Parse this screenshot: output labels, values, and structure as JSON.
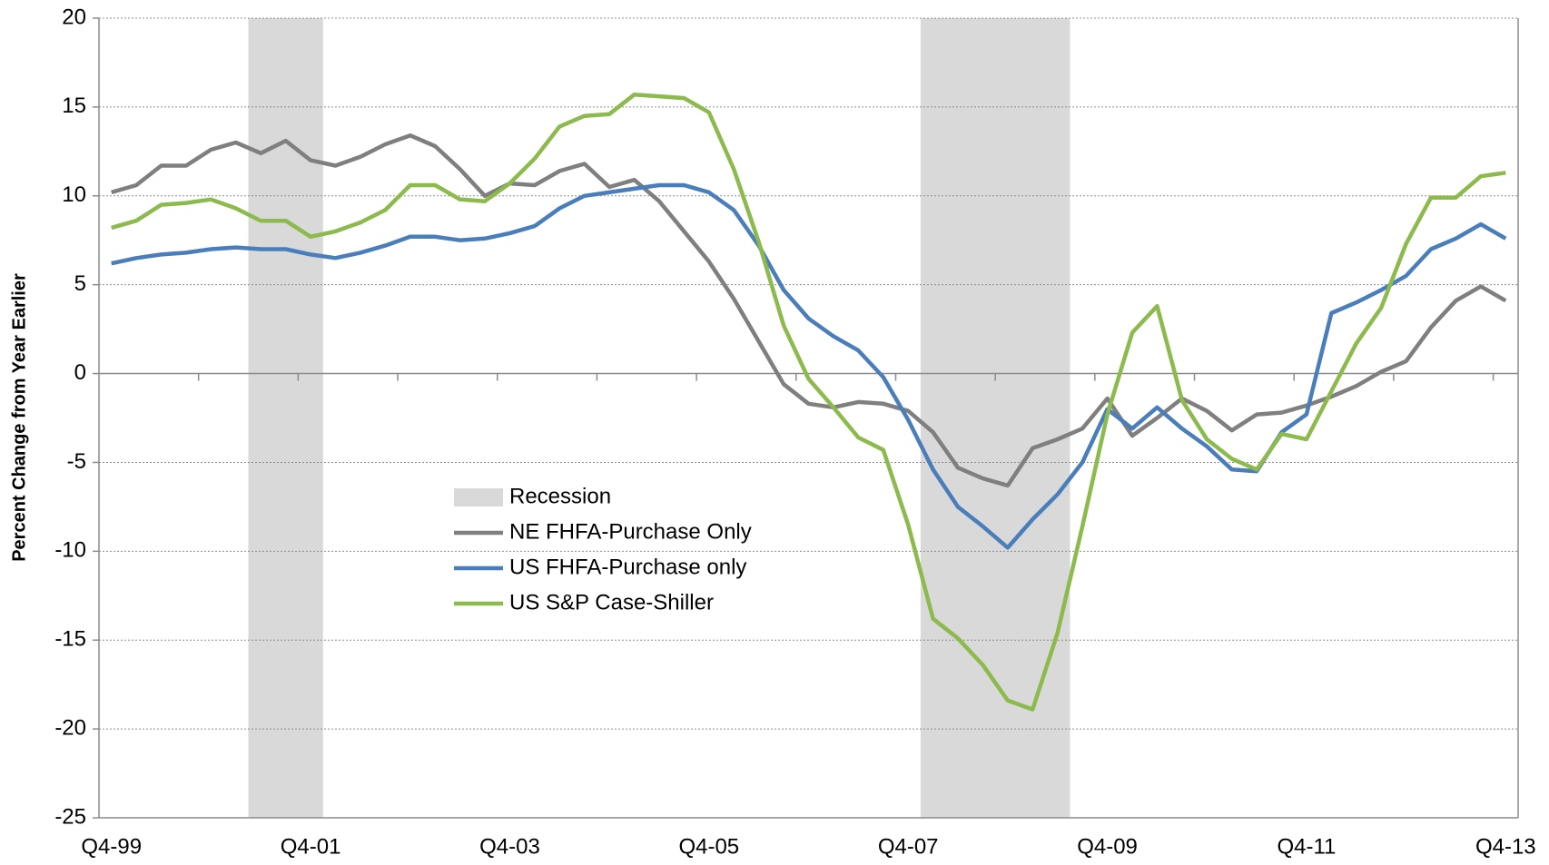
{
  "chart_data": {
    "type": "line",
    "y_label": "Percent Change from Year Earlier",
    "categories": [
      "Q4-99",
      null,
      null,
      null,
      null,
      null,
      null,
      null,
      "Q4-01",
      null,
      null,
      null,
      null,
      null,
      null,
      null,
      "Q4-03",
      null,
      null,
      null,
      null,
      null,
      null,
      null,
      "Q4-05",
      null,
      null,
      null,
      null,
      null,
      null,
      null,
      "Q4-07",
      null,
      null,
      null,
      null,
      null,
      null,
      null,
      "Q4-09",
      null,
      null,
      null,
      null,
      null,
      null,
      null,
      "Q4-11",
      null,
      null,
      null,
      null,
      null,
      null,
      null,
      "Q4-13"
    ],
    "recession": {
      "name": "Recession",
      "color": "#d9d9d9",
      "spans": [
        {
          "start": 6,
          "end": 8
        },
        {
          "start": 33,
          "end": 38
        }
      ]
    },
    "series": [
      {
        "name": "NE FHFA-Purchase Only",
        "color": "#7f7f7f",
        "values": [
          10.2,
          10.6,
          11.7,
          11.7,
          12.6,
          13.0,
          12.4,
          13.1,
          12.0,
          11.7,
          12.2,
          12.9,
          13.4,
          12.8,
          11.5,
          10.0,
          10.7,
          10.6,
          11.4,
          11.8,
          10.5,
          10.9,
          9.7,
          8.0,
          6.3,
          4.2,
          1.8,
          -0.6,
          -1.7,
          -1.9,
          -1.6,
          -1.7,
          -2.1,
          -3.3,
          -5.3,
          -5.9,
          -6.3,
          -4.2,
          -3.7,
          -3.1,
          -1.4,
          -3.5,
          -2.5,
          -1.4,
          -2.1,
          -3.2,
          -2.3,
          -2.2,
          -1.8,
          -1.3,
          -0.7,
          0.1,
          0.7,
          2.6,
          4.1,
          4.9,
          4.1
        ]
      },
      {
        "name": "US FHFA-Purchase only",
        "color": "#4a7ebb",
        "values": [
          6.2,
          6.5,
          6.7,
          6.8,
          7.0,
          7.1,
          7.0,
          7.0,
          6.7,
          6.5,
          6.8,
          7.2,
          7.7,
          7.7,
          7.5,
          7.6,
          7.9,
          8.3,
          9.3,
          10.0,
          10.2,
          10.4,
          10.6,
          10.6,
          10.2,
          9.2,
          7.2,
          4.7,
          3.1,
          2.1,
          1.3,
          -0.2,
          -2.6,
          -5.4,
          -7.5,
          -8.6,
          -9.8,
          -8.2,
          -6.8,
          -5.0,
          -2.0,
          -3.1,
          -1.9,
          -3.1,
          -4.1,
          -5.4,
          -5.5,
          -3.3,
          -2.3,
          3.4,
          4.0,
          4.7,
          5.5,
          7.0,
          7.6,
          8.4,
          7.6
        ]
      },
      {
        "name": "US S&P Case-Shiller",
        "color": "#8cba4c",
        "values": [
          8.2,
          8.6,
          9.5,
          9.6,
          9.8,
          9.3,
          8.6,
          8.6,
          7.7,
          8.0,
          8.5,
          9.2,
          10.6,
          10.6,
          9.8,
          9.7,
          10.7,
          12.1,
          13.9,
          14.5,
          14.6,
          15.7,
          15.6,
          15.5,
          14.7,
          11.5,
          7.4,
          2.7,
          -0.3,
          -1.9,
          -3.6,
          -4.3,
          -8.5,
          -13.8,
          -14.9,
          -16.4,
          -18.4,
          -18.9,
          -14.6,
          -8.6,
          -2.3,
          2.3,
          3.8,
          -1.5,
          -3.7,
          -4.8,
          -5.4,
          -3.4,
          -3.7,
          -1.0,
          1.7,
          3.7,
          7.3,
          9.9,
          9.9,
          11.1,
          11.3
        ]
      }
    ],
    "ylim": [
      -25,
      20
    ],
    "yticks": [
      -25,
      -20,
      -15,
      -10,
      -5,
      0,
      5,
      10,
      15,
      20
    ],
    "grid": true,
    "grid_style": "dotted",
    "legend": "center"
  }
}
